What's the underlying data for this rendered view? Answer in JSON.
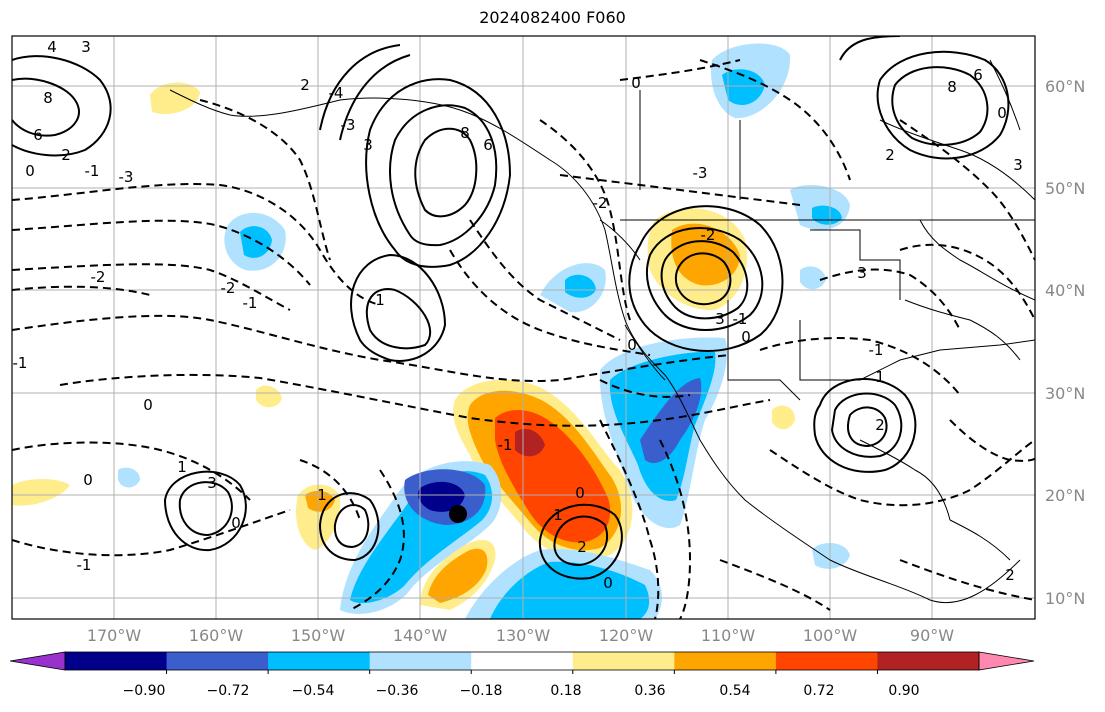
{
  "title": "2024082400 F060",
  "lat_labels": [
    "60°N",
    "50°N",
    "40°N",
    "30°N",
    "20°N",
    "10°N"
  ],
  "lon_labels": [
    "170°W",
    "160°W",
    "150°W",
    "140°W",
    "130°W",
    "120°W",
    "110°W",
    "100°W",
    "90°W"
  ],
  "colorbar": {
    "colors": [
      "#9932cc",
      "#00008b",
      "#3a5fcd",
      "#00bfff",
      "#b0e2ff",
      "#ffffff",
      "#ffec8b",
      "#ffa500",
      "#ff4500",
      "#b22222",
      "#ff88b0"
    ],
    "tick_labels": [
      "−0.90",
      "−0.72",
      "−0.54",
      "−0.36",
      "−0.18",
      "0.18",
      "0.36",
      "0.54",
      "0.72",
      "0.90"
    ]
  },
  "contour_labels": [
    "4",
    "3",
    "8",
    "6",
    "2",
    "0",
    "-1",
    "-3",
    "2",
    "-4",
    "-3",
    "3",
    "6",
    "8",
    "-2",
    "-2",
    "-1",
    "-1",
    "0",
    "0",
    "-3",
    "-2",
    "3",
    "-1",
    "1",
    "3",
    "-1",
    "0",
    "0",
    "1",
    "2",
    "-1",
    "0",
    "0",
    "1",
    "-1",
    "0",
    "1",
    "3",
    "2",
    "-2",
    "1",
    "2",
    "3",
    "0",
    "0",
    "2",
    "6",
    "8"
  ]
}
